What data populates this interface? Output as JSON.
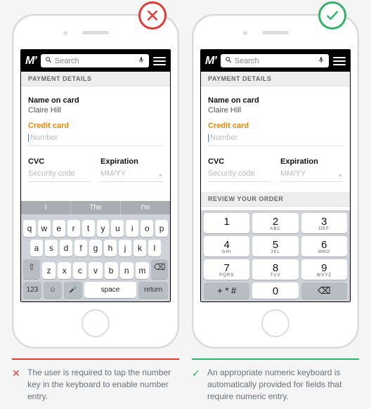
{
  "colors": {
    "bad": "#e53935",
    "good": "#35b26a",
    "accent": "#e68a00"
  },
  "header": {
    "logo": "M’",
    "search_placeholder": "Search"
  },
  "form": {
    "section_title": "PAYMENT DETAILS",
    "name_label": "Name on card",
    "name_value": "Claire Hill",
    "cc_label": "Credit card",
    "cc_placeholder": "Number",
    "cvc_label": "CVC",
    "cvc_placeholder": "Security code",
    "exp_label": "Expiration",
    "exp_placeholder": "MM/YY",
    "review_title": "REVIEW YOUR ORDER"
  },
  "qwerty": {
    "suggestions": [
      "I",
      "The",
      "I'm"
    ],
    "row1": [
      "q",
      "w",
      "e",
      "r",
      "t",
      "y",
      "u",
      "i",
      "o",
      "p"
    ],
    "row2": [
      "a",
      "s",
      "d",
      "f",
      "g",
      "h",
      "j",
      "k",
      "l"
    ],
    "row3": [
      "z",
      "x",
      "c",
      "v",
      "b",
      "n",
      "m"
    ],
    "shift": "⇧",
    "backspace": "⌫",
    "numkey": "123",
    "emoji": "☺",
    "mic": "🎤",
    "space": "space",
    "return": "return"
  },
  "numpad": {
    "keys": [
      {
        "d": "1",
        "t": ""
      },
      {
        "d": "2",
        "t": "ABC"
      },
      {
        "d": "3",
        "t": "DEF"
      },
      {
        "d": "4",
        "t": "GHI"
      },
      {
        "d": "5",
        "t": "JKL"
      },
      {
        "d": "6",
        "t": "MNO"
      },
      {
        "d": "7",
        "t": "PQRS"
      },
      {
        "d": "8",
        "t": "TUV"
      },
      {
        "d": "9",
        "t": "WXYZ"
      }
    ],
    "sym": "+ * #",
    "zero": "0",
    "backspace": "⌫"
  },
  "captions": {
    "bad": "The user is required to tap the number key in the keyboard to enable number entry.",
    "good": "An appropriate numeric keyboard is automatically provided for fields that require numeric entry."
  }
}
